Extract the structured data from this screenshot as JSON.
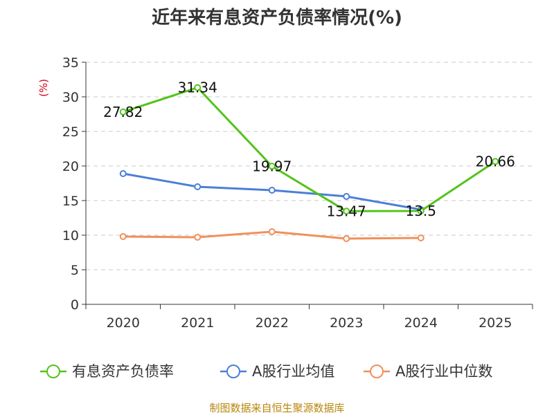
{
  "chart_data": {
    "type": "line",
    "title": "近年来有息资产负债率情况(%)",
    "ylabel": "(%)",
    "ylim": [
      0,
      35
    ],
    "yticks": [
      0,
      5,
      10,
      15,
      20,
      25,
      30,
      35
    ],
    "categories": [
      "2020",
      "2021",
      "2022",
      "2023",
      "2024",
      "2025"
    ],
    "grid": true,
    "legend_position": "bottom",
    "series": [
      {
        "name": "有息资产负债率",
        "color": "#52c41a",
        "values": [
          27.82,
          31.34,
          19.97,
          13.47,
          13.5,
          20.66
        ],
        "labels": [
          "27.82",
          "31.34",
          "19.97",
          "13.47",
          "13.5",
          "20.66"
        ]
      },
      {
        "name": "A股行业均值",
        "color": "#4a7fd8",
        "values": [
          18.9,
          17.0,
          16.5,
          15.6,
          13.7,
          null
        ]
      },
      {
        "name": "A股行业中位数",
        "color": "#f0905a",
        "values": [
          9.8,
          9.7,
          10.5,
          9.5,
          9.6,
          null
        ]
      }
    ]
  },
  "source_note": "制图数据来自恒生聚源数据库"
}
